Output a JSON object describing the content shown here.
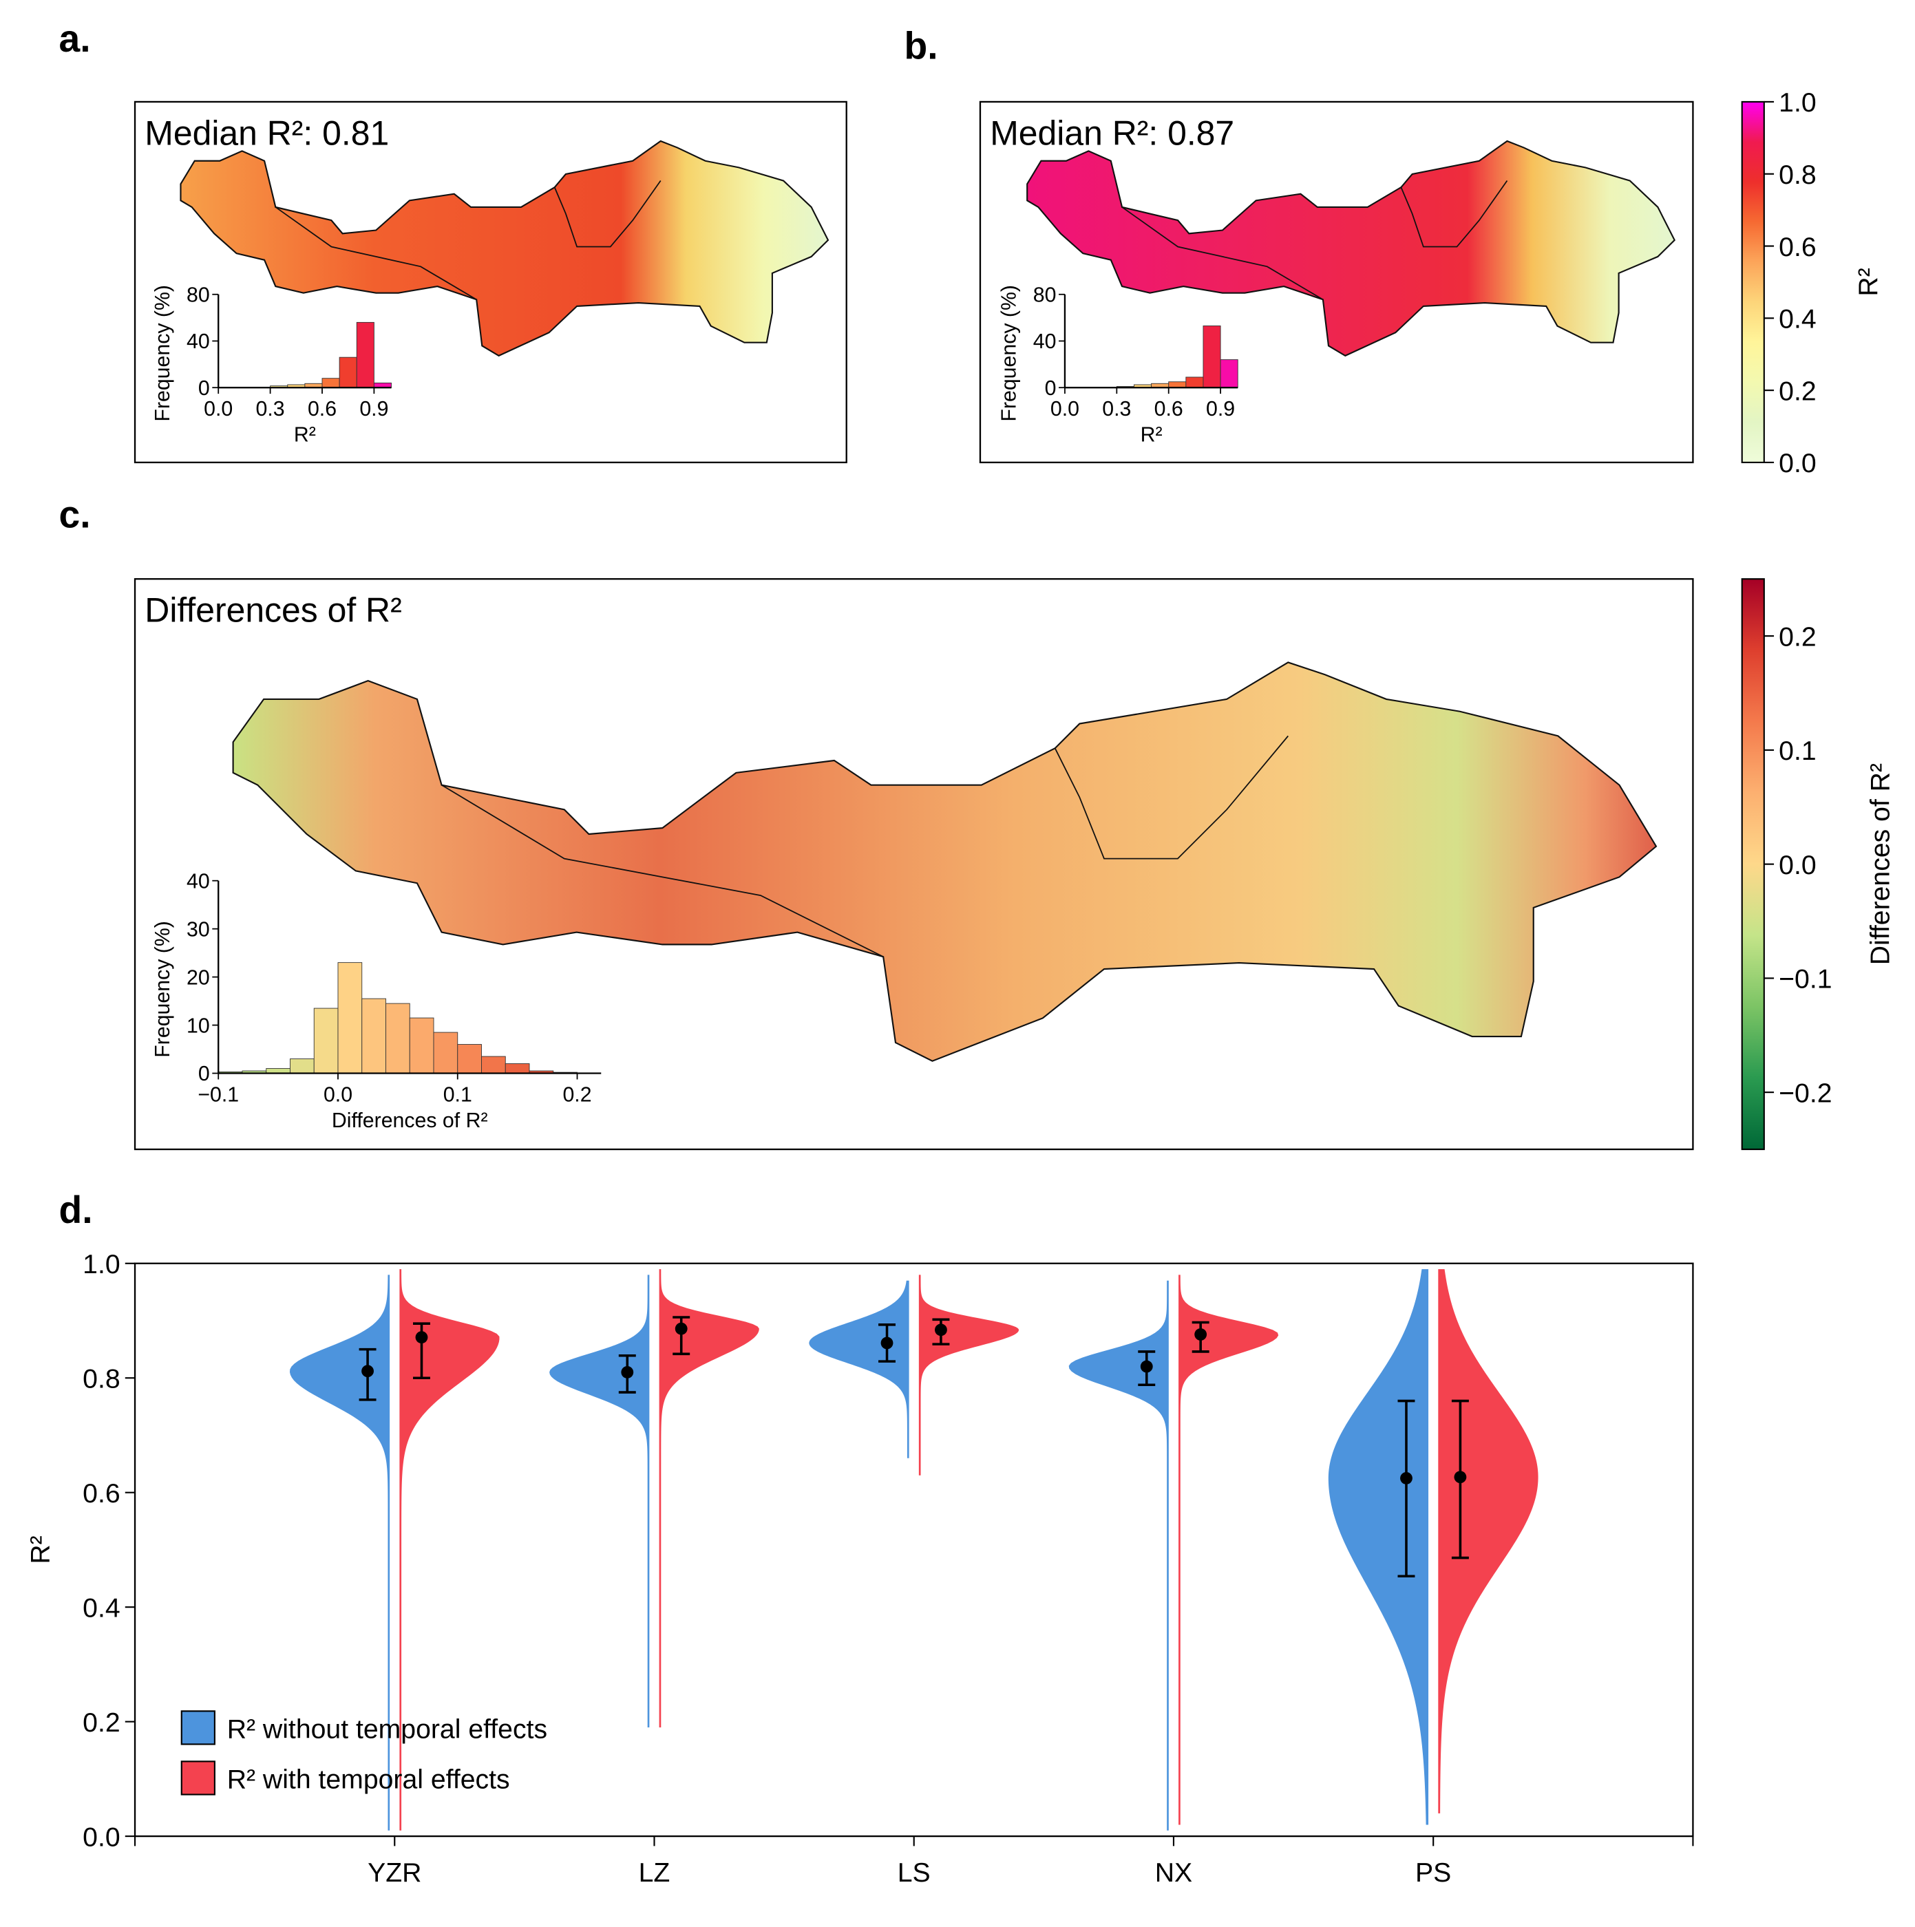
{
  "chart_data": [
    {
      "type": "map-histogram",
      "panel_label": "a.",
      "title": "Median R²: 0.81",
      "xlabel": "R²",
      "ylabel": "Frequency (%)",
      "bins": [
        0,
        0.1,
        0.2,
        0.3,
        0.4,
        0.5,
        0.6,
        0.7,
        0.8,
        0.9,
        1.0
      ],
      "values": [
        0,
        0,
        0,
        1.5,
        2.5,
        3.5,
        8,
        26,
        56,
        4
      ],
      "xlim": [
        0,
        1
      ],
      "xticks": [
        {
          "value": 0,
          "label": "0.0"
        },
        0.3,
        0.6,
        0.9
      ],
      "ylim": [
        0,
        80
      ],
      "yticks": [
        0,
        40,
        80
      ]
    },
    {
      "type": "map-histogram",
      "panel_label": "b.",
      "title": "Median R²: 0.87",
      "xlabel": "R²",
      "ylabel": "Frequency (%)",
      "bins": [
        0,
        0.1,
        0.2,
        0.3,
        0.4,
        0.5,
        0.6,
        0.7,
        0.8,
        0.9,
        1.0
      ],
      "values": [
        0,
        0,
        0,
        1,
        2.5,
        3.5,
        5,
        9,
        53,
        24
      ],
      "xlim": [
        0,
        1
      ],
      "xticks": [
        {
          "value": 0,
          "label": "0.0"
        },
        0.3,
        0.6,
        0.9
      ],
      "ylim": [
        0,
        80
      ],
      "yticks": [
        0,
        40,
        80
      ]
    },
    {
      "type": "colorbar",
      "label": "R²",
      "colors": [
        "#effcda",
        "#e3f5c4",
        "#f3f9b0",
        "#fff59a",
        "#fdd57a",
        "#fca55a",
        "#f66a32",
        "#ee2f2c",
        "#f01a50",
        "#ff00f0"
      ],
      "ylim": [
        0,
        1
      ],
      "yticks": [
        {
          "value": 0,
          "label": "0.0"
        },
        0.2,
        0.4,
        0.6,
        0.8,
        {
          "value": 1,
          "label": "1.0"
        }
      ]
    },
    {
      "type": "map-histogram",
      "panel_label": "c.",
      "title": "Differences of R²",
      "xlabel": "Differences of R²",
      "ylabel": "Frequency (%)",
      "bins": [
        -0.1,
        -0.08,
        -0.06,
        -0.04,
        -0.02,
        0,
        0.02,
        0.04,
        0.06,
        0.08,
        0.1,
        0.12,
        0.14,
        0.16,
        0.18,
        0.2,
        0.22
      ],
      "values": [
        0.3,
        0.5,
        1,
        3,
        13.5,
        23,
        15.5,
        14.5,
        11.5,
        8.5,
        6,
        3.5,
        2,
        0.5,
        0.2,
        0
      ],
      "xlim": [
        -0.1,
        0.22
      ],
      "xticks": [
        {
          "value": -0.1,
          "label": "−0.1"
        },
        {
          "value": 0,
          "label": "0.0"
        },
        0.1,
        0.2
      ],
      "ylim": [
        0,
        40
      ],
      "yticks": [
        0,
        10,
        20,
        30,
        40
      ]
    },
    {
      "type": "colorbar",
      "label": "Differences of R²",
      "colors": [
        "#006837",
        "#2a9a50",
        "#7cc465",
        "#c4e489",
        "#fed88a",
        "#fcb070",
        "#f47a4c",
        "#de3f2e",
        "#a50026"
      ],
      "ylim": [
        -0.25,
        0.25
      ],
      "yticks": [
        {
          "value": -0.2,
          "label": "−0.2"
        },
        {
          "value": -0.1,
          "label": "−0.1"
        },
        {
          "value": 0,
          "label": "0.0"
        },
        0.1,
        0.2
      ]
    },
    {
      "type": "violin",
      "panel_label": "d.",
      "ylabel": "R²",
      "legend": "lower left",
      "categories": [
        "YZR",
        "LZ",
        "LS",
        "NX",
        "PS"
      ],
      "series": [
        {
          "name": "R² without temporal effects",
          "color": "#4d94dd",
          "values": [
            0.812,
            0.81,
            0.861,
            0.82,
            0.625
          ],
          "lower": [
            0.762,
            0.775,
            0.829,
            0.788,
            0.454
          ],
          "upper": [
            0.85,
            0.839,
            0.893,
            0.846,
            0.76
          ],
          "min": [
            0.01,
            0.19,
            0.66,
            0.01,
            0.02
          ],
          "max": [
            0.98,
            0.98,
            0.97,
            0.97,
            0.99
          ]
        },
        {
          "name": "R² with temporal effects",
          "color": "#f4424f",
          "values": [
            0.871,
            0.886,
            0.884,
            0.876,
            0.627
          ],
          "lower": [
            0.8,
            0.842,
            0.859,
            0.846,
            0.486
          ],
          "upper": [
            0.895,
            0.906,
            0.902,
            0.897,
            0.76
          ],
          "min": [
            0.01,
            0.19,
            0.63,
            0.02,
            0.04
          ],
          "max": [
            0.99,
            0.99,
            0.98,
            0.98,
            0.99
          ]
        }
      ],
      "ylim": [
        0,
        1
      ],
      "yticks": [
        {
          "value": 0,
          "label": "0.0"
        },
        0.2,
        0.4,
        0.6,
        0.8,
        {
          "value": 1,
          "label": "1.0"
        }
      ]
    }
  ]
}
